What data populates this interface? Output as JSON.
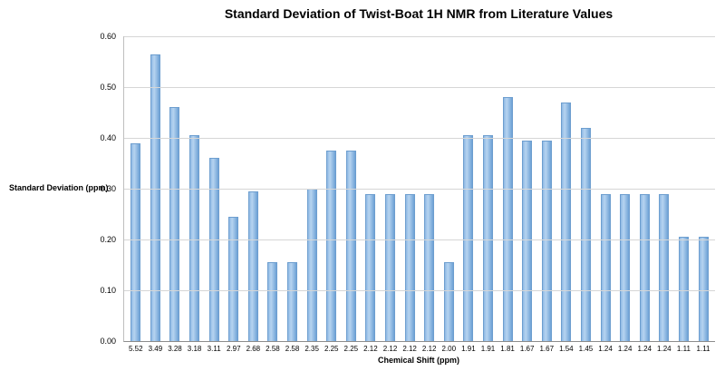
{
  "chart_data": {
    "type": "bar",
    "title": "Standard Deviation of Twist-Boat 1H NMR from Literature Values",
    "xlabel": "Chemical Shift (ppm)",
    "ylabel": "Standard Deviation (ppm)",
    "ylim": [
      0,
      0.6
    ],
    "ytick_step": 0.1,
    "ytick_labels": [
      "0.00",
      "0.10",
      "0.20",
      "0.30",
      "0.40",
      "0.50",
      "0.60"
    ],
    "grid": true,
    "legend": "none",
    "bar_color": "#7fb0de",
    "bar_border_color": "#6d9ecf",
    "categories": [
      "5.52",
      "3.49",
      "3.28",
      "3.18",
      "3.11",
      "2.97",
      "2.68",
      "2.58",
      "2.58",
      "2.35",
      "2.25",
      "2.25",
      "2.12",
      "2.12",
      "2.12",
      "2.12",
      "2.00",
      "1.91",
      "1.91",
      "1.81",
      "1.67",
      "1.67",
      "1.54",
      "1.45",
      "1.24",
      "1.24",
      "1.24",
      "1.24",
      "1.11",
      "1.11"
    ],
    "values": [
      0.39,
      0.565,
      0.46,
      0.405,
      0.36,
      0.245,
      0.295,
      0.155,
      0.155,
      0.3,
      0.375,
      0.375,
      0.29,
      0.29,
      0.29,
      0.29,
      0.155,
      0.405,
      0.405,
      0.48,
      0.395,
      0.395,
      0.47,
      0.42,
      0.29,
      0.29,
      0.29,
      0.29,
      0.205,
      0.205
    ]
  }
}
